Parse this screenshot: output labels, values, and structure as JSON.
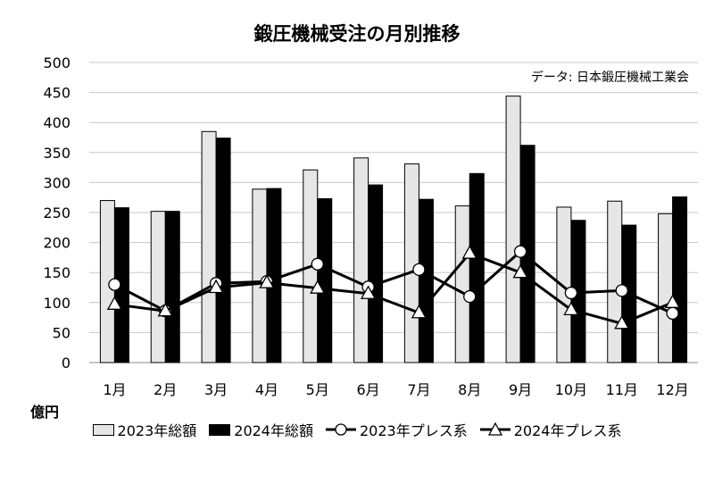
{
  "chart_data": {
    "type": "bar",
    "title": "鍛圧機械受注の月別推移",
    "source": "データ: 日本鍛圧機械工業会",
    "ylabel": "億円",
    "ylim": [
      0,
      500
    ],
    "yticks": [
      0,
      50,
      100,
      150,
      200,
      250,
      300,
      350,
      400,
      450,
      500
    ],
    "grid": true,
    "legend_position": "bottom",
    "categories": [
      "1月",
      "2月",
      "3月",
      "4月",
      "5月",
      "6月",
      "7月",
      "8月",
      "9月",
      "10月",
      "11月",
      "12月"
    ],
    "series": [
      {
        "name": "2023年総額",
        "kind": "bar",
        "color": "#e6e6e6",
        "values": [
          270,
          252,
          385,
          289,
          321,
          341,
          331,
          261,
          444,
          259,
          269,
          248
        ]
      },
      {
        "name": "2024年総額",
        "kind": "bar",
        "color": "#000000",
        "values": [
          258,
          252,
          374,
          290,
          273,
          296,
          272,
          315,
          362,
          237,
          229,
          276
        ]
      },
      {
        "name": "2023年プレス系",
        "kind": "line",
        "marker": "circle",
        "values": [
          130,
          86,
          132,
          135,
          164,
          126,
          155,
          110,
          185,
          116,
          120,
          82
        ]
      },
      {
        "name": "2024年プレス系",
        "kind": "line",
        "marker": "triangle",
        "values": [
          97,
          86,
          125,
          133,
          124,
          115,
          83,
          182,
          150,
          88,
          65,
          100
        ]
      }
    ]
  }
}
